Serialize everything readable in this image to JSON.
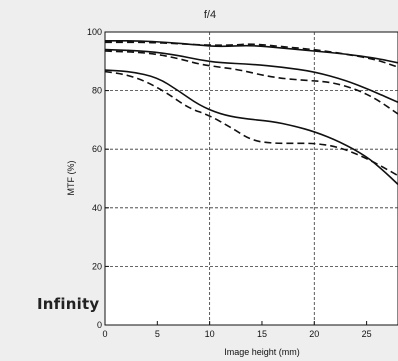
{
  "side_label": "Infinity",
  "chart_data": {
    "type": "line",
    "title": "f/4",
    "xlabel": "Image height (mm)",
    "ylabel": "MTF (%)",
    "xlim": [
      0,
      28
    ],
    "ylim": [
      0,
      100
    ],
    "x_ticks": [
      0,
      5,
      10,
      15,
      20,
      25
    ],
    "y_ticks": [
      0,
      20,
      40,
      60,
      80,
      100
    ],
    "grid": "dashed at x=10, x=20 and y=20, 40, 60, 80",
    "line_color": "#111111",
    "series": [
      {
        "style": "solid",
        "points": [
          [
            0,
            97
          ],
          [
            3,
            97
          ],
          [
            6,
            96.5
          ],
          [
            9,
            95.5
          ],
          [
            11,
            95
          ],
          [
            14,
            95.5
          ],
          [
            17,
            94.5
          ],
          [
            20,
            93.5
          ],
          [
            23,
            92.5
          ],
          [
            26,
            91
          ],
          [
            28,
            89.5
          ]
        ]
      },
      {
        "style": "dashed",
        "points": [
          [
            0,
            96.5
          ],
          [
            4,
            96.5
          ],
          [
            7,
            96
          ],
          [
            10,
            95.5
          ],
          [
            12,
            95.5
          ],
          [
            14,
            96
          ],
          [
            17,
            95
          ],
          [
            20,
            94
          ],
          [
            23,
            92.5
          ],
          [
            26,
            90.5
          ],
          [
            28,
            88
          ]
        ]
      },
      {
        "style": "solid",
        "points": [
          [
            0,
            94
          ],
          [
            4,
            93.5
          ],
          [
            7,
            92
          ],
          [
            9,
            90.5
          ],
          [
            11,
            89.5
          ],
          [
            14,
            89
          ],
          [
            17,
            88
          ],
          [
            20,
            86.5
          ],
          [
            23,
            83.5
          ],
          [
            25.5,
            80
          ],
          [
            28,
            76
          ]
        ]
      },
      {
        "style": "dashed",
        "points": [
          [
            0,
            93.5
          ],
          [
            4,
            93
          ],
          [
            7,
            91
          ],
          [
            9,
            89
          ],
          [
            11,
            88
          ],
          [
            13,
            87
          ],
          [
            16,
            84.5
          ],
          [
            19,
            83.5
          ],
          [
            21.5,
            83
          ],
          [
            24,
            80.5
          ],
          [
            26,
            77
          ],
          [
            28,
            72
          ]
        ]
      },
      {
        "style": "solid",
        "points": [
          [
            0,
            87
          ],
          [
            2.5,
            86.5
          ],
          [
            5,
            84.5
          ],
          [
            7,
            80
          ],
          [
            9,
            75
          ],
          [
            11,
            72
          ],
          [
            13,
            70.5
          ],
          [
            16,
            69.5
          ],
          [
            18,
            68
          ],
          [
            20,
            66
          ],
          [
            22.5,
            62.5
          ],
          [
            25,
            57.5
          ],
          [
            26.5,
            53
          ],
          [
            28,
            48
          ]
        ]
      },
      {
        "style": "dashed",
        "points": [
          [
            0,
            86.5
          ],
          [
            2,
            85.5
          ],
          [
            4,
            83
          ],
          [
            6,
            79
          ],
          [
            8,
            74
          ],
          [
            10,
            71.5
          ],
          [
            12,
            67.5
          ],
          [
            14,
            63
          ],
          [
            16,
            62
          ],
          [
            18,
            62
          ],
          [
            20,
            62
          ],
          [
            22,
            61
          ],
          [
            24,
            58.5
          ],
          [
            26,
            55
          ],
          [
            28,
            51
          ]
        ]
      }
    ]
  }
}
